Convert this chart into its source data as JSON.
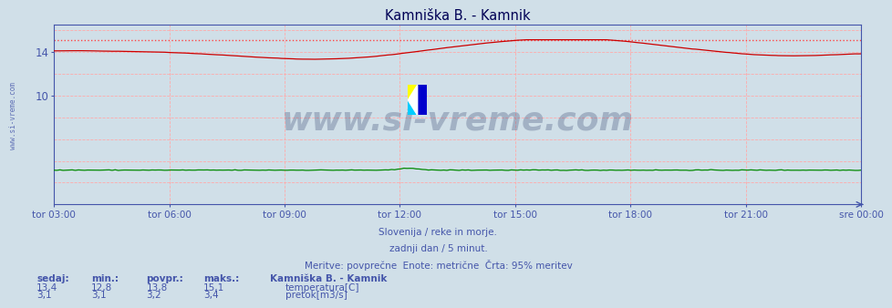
{
  "title": "Kamniška B. - Kamnik",
  "bg_color": "#d0dfe8",
  "plot_bg_color": "#d0dfe8",
  "grid_color": "#ffaaaa",
  "axis_color": "#4455aa",
  "title_color": "#000055",
  "text_color": "#4455aa",
  "temp_color": "#cc0000",
  "flow_color": "#008800",
  "max_line_color": "#ff4444",
  "ylim": [
    0,
    16.5
  ],
  "yticks": [
    2,
    4,
    6,
    8,
    10,
    12,
    14,
    16
  ],
  "xtick_labels": [
    "tor 03:00",
    "tor 06:00",
    "tor 09:00",
    "tor 12:00",
    "tor 15:00",
    "tor 18:00",
    "tor 21:00",
    "sre 00:00"
  ],
  "n_points": 264,
  "temp_max": 15.1,
  "flow_min": 3.1,
  "flow_max": 3.4,
  "watermark": "www.si-vreme.com",
  "watermark_color": "#1a2a5a",
  "watermark_alpha": 0.25,
  "footer_lines": [
    "Slovenija / reke in morje.",
    "zadnji dan / 5 minut.",
    "Meritve: povprečne  Enote: metrične  Črta: 95% meritev"
  ],
  "legend_title": "Kamniška B. - Kamnik",
  "legend_items": [
    {
      "label": "temperatura[C]",
      "color": "#cc0000"
    },
    {
      "label": "pretok[m3/s]",
      "color": "#008800"
    }
  ],
  "stats_headers": [
    "sedaj:",
    "min.:",
    "povpr.:",
    "maks.:"
  ],
  "stats_temp": [
    "13,4",
    "12,8",
    "13,8",
    "15,1"
  ],
  "stats_flow": [
    "3,1",
    "3,1",
    "3,2",
    "3,4"
  ],
  "left_label": "www.si-vreme.com"
}
